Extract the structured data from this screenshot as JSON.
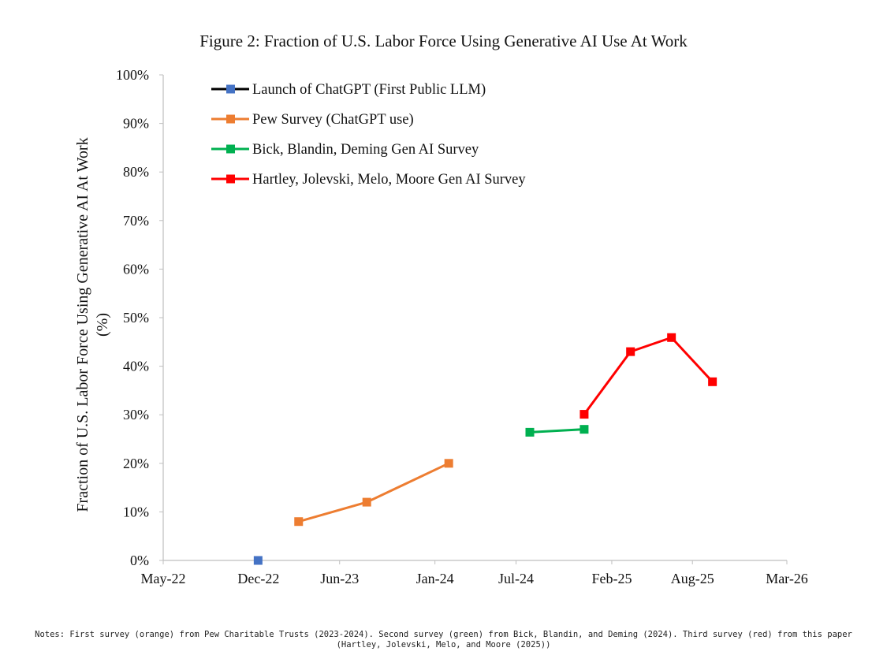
{
  "figure": {
    "title": "Figure 2: Fraction of U.S. Labor Force Using Generative AI Use At Work",
    "notes": "Notes: First survey (orange) from Pew Charitable Trusts (2023-2024). Second survey (green) from Bick, Blandin, and Deming (2024). Third survey (red) from this paper (Hartley, Jolevski, Melo, and Moore (2025))"
  },
  "chart_data": {
    "type": "line",
    "title": "Figure 2: Fraction of U.S. Labor Force Using Generative AI Use At Work",
    "xlabel": "",
    "ylabel": "Fraction of U.S. Labor Force Using Generative AI At Work",
    "ylabel_unit": "(%)",
    "x_axis": "date",
    "xlim": [
      "2022-05-01",
      "2026-03-01"
    ],
    "ylim": [
      0,
      100
    ],
    "x_ticks": [
      {
        "date": "2022-05-01",
        "label": "May-22"
      },
      {
        "date": "2022-12-01",
        "label": "Dec-22"
      },
      {
        "date": "2023-06-01",
        "label": "Jun-23"
      },
      {
        "date": "2024-01-01",
        "label": "Jan-24"
      },
      {
        "date": "2024-07-01",
        "label": "Jul-24"
      },
      {
        "date": "2025-02-01",
        "label": "Feb-25"
      },
      {
        "date": "2025-08-01",
        "label": "Aug-25"
      },
      {
        "date": "2026-03-01",
        "label": "Mar-26"
      }
    ],
    "y_ticks": [
      0,
      10,
      20,
      30,
      40,
      50,
      60,
      70,
      80,
      90,
      100
    ],
    "y_tick_labels": [
      "0%",
      "10%",
      "20%",
      "30%",
      "40%",
      "50%",
      "60%",
      "70%",
      "80%",
      "90%",
      "100%"
    ],
    "grid": false,
    "legend_position": "top-left",
    "series": [
      {
        "name": "Launch of ChatGPT (First Public LLM)",
        "line_color": "#000000",
        "marker_color": "#4472c4",
        "points": [
          {
            "x": "2022-11-30",
            "y": 0
          }
        ]
      },
      {
        "name": "Pew Survey (ChatGPT use)",
        "line_color": "#ed7d31",
        "marker_color": "#ed7d31",
        "points": [
          {
            "x": "2023-03-01",
            "y": 8
          },
          {
            "x": "2023-08-01",
            "y": 12
          },
          {
            "x": "2024-02-01",
            "y": 20
          }
        ]
      },
      {
        "name": "Bick, Blandin, Deming Gen AI Survey",
        "line_color": "#00b050",
        "marker_color": "#00b050",
        "points": [
          {
            "x": "2024-08-01",
            "y": 26.4
          },
          {
            "x": "2024-12-01",
            "y": 27.0
          }
        ]
      },
      {
        "name": "Hartley, Jolevski, Melo, Moore Gen AI Survey",
        "line_color": "#ff0000",
        "marker_color": "#ff0000",
        "points": [
          {
            "x": "2024-12-01",
            "y": 30.1
          },
          {
            "x": "2025-03-15",
            "y": 43.0
          },
          {
            "x": "2025-06-15",
            "y": 45.9
          },
          {
            "x": "2025-09-15",
            "y": 36.8
          }
        ]
      }
    ]
  }
}
